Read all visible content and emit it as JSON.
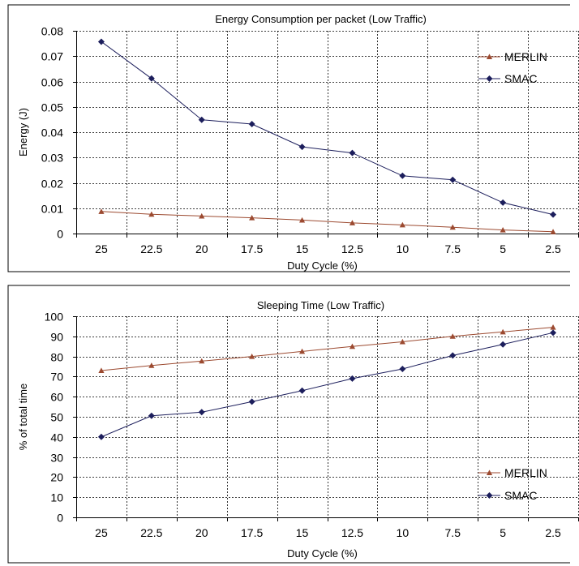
{
  "colors": {
    "merlin": "#9c4a30",
    "smac": "#1c1e5c",
    "frame": "#000000",
    "grid": "#000000",
    "background": "#ffffff"
  },
  "chart_data": [
    {
      "type": "line",
      "title": "Energy Consumption per packet (Low Traffic)",
      "xlabel": "Duty Cycle (%)",
      "ylabel": "Energy (J)",
      "categories": [
        "25",
        "22.5",
        "20",
        "17.5",
        "15",
        "12.5",
        "10",
        "7.5",
        "5",
        "2.5"
      ],
      "yticks": [
        "0",
        "0.01",
        "0.02",
        "0.03",
        "0.04",
        "0.05",
        "0.06",
        "0.07",
        "0.08"
      ],
      "ylim": [
        0,
        0.08
      ],
      "grid": true,
      "legend_position": "top-right",
      "series": [
        {
          "name": "MERLIN",
          "marker": "triangle",
          "values": [
            0.0087,
            0.0076,
            0.0069,
            0.0062,
            0.0053,
            0.0042,
            0.0034,
            0.0025,
            0.0014,
            0.0007
          ]
        },
        {
          "name": "SMAC",
          "marker": "diamond",
          "values": [
            0.0757,
            0.0612,
            0.0449,
            0.0432,
            0.0342,
            0.0318,
            0.0228,
            0.0212,
            0.0122,
            0.0075
          ]
        }
      ]
    },
    {
      "type": "line",
      "title": "Sleeping Time (Low Traffic)",
      "xlabel": "Duty Cycle (%)",
      "ylabel": "% of total  time",
      "categories": [
        "25",
        "22.5",
        "20",
        "17.5",
        "15",
        "12.5",
        "10",
        "7.5",
        "5",
        "2.5"
      ],
      "yticks": [
        "0",
        "10",
        "20",
        "30",
        "40",
        "50",
        "60",
        "70",
        "80",
        "90",
        "100"
      ],
      "ylim": [
        0,
        100
      ],
      "grid": true,
      "legend_position": "bottom-right",
      "series": [
        {
          "name": "MERLIN",
          "marker": "triangle",
          "values": [
            73,
            75.5,
            77.7,
            80,
            82.5,
            85,
            87.3,
            90,
            92.2,
            94.5
          ]
        },
        {
          "name": "SMAC",
          "marker": "diamond",
          "values": [
            40,
            50.5,
            52.3,
            57.5,
            63,
            69,
            73.8,
            80.5,
            86,
            91.8
          ]
        }
      ]
    }
  ]
}
